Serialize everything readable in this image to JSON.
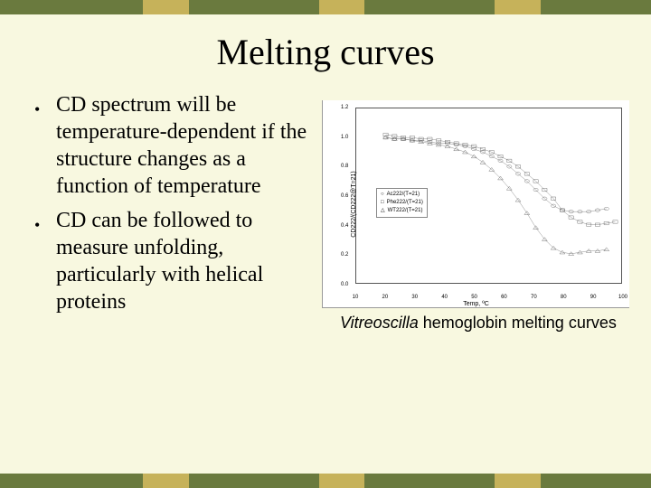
{
  "border": {
    "colors": [
      "#6a7a3e",
      "#c6b25a",
      "#6a7a3e",
      "#c6b25a",
      "#6a7a3e",
      "#c6b25a",
      "#6a7a3e"
    ],
    "widths_pct": [
      22,
      7,
      20,
      7,
      20,
      7,
      17
    ]
  },
  "title": "Melting curves",
  "bullets": [
    "CD spectrum will be temperature-dependent if the structure changes as a function of temperature",
    "CD can be followed to measure unfolding, particularly with helical proteins"
  ],
  "chart": {
    "type": "scatter-line",
    "ylabel": "CD222/(CD222@T=21)",
    "xlabel": "Temp, ºC",
    "xlim": [
      10,
      100
    ],
    "xtick_step": 10,
    "ylim": [
      0.0,
      1.2
    ],
    "yticks": [
      0.0,
      0.2,
      0.4,
      0.6,
      0.8,
      1.0,
      1.2
    ],
    "background_color": "#ffffff",
    "axis_color": "#555555",
    "tick_fontsize": 6,
    "label_fontsize": 7,
    "legend": {
      "items": [
        {
          "marker": "circle",
          "label": "Ac222/(T=21)"
        },
        {
          "marker": "square",
          "label": "Phe222/(T=21)"
        },
        {
          "marker": "triangle",
          "label": "WT222/(T=21)"
        }
      ],
      "border_color": "#888888"
    },
    "series": [
      {
        "marker": "circle",
        "color": "#444444",
        "x": [
          20,
          23,
          26,
          29,
          32,
          35,
          38,
          41,
          44,
          47,
          50,
          53,
          56,
          59,
          62,
          65,
          68,
          71,
          74,
          77,
          80,
          83,
          86,
          89,
          92,
          95
        ],
        "y": [
          1.0,
          0.99,
          0.99,
          0.98,
          0.98,
          0.97,
          0.96,
          0.96,
          0.95,
          0.94,
          0.92,
          0.9,
          0.87,
          0.84,
          0.8,
          0.75,
          0.7,
          0.64,
          0.58,
          0.53,
          0.5,
          0.49,
          0.49,
          0.49,
          0.5,
          0.51
        ]
      },
      {
        "marker": "square",
        "color": "#444444",
        "x": [
          20,
          23,
          26,
          29,
          32,
          35,
          38,
          41,
          44,
          47,
          50,
          53,
          56,
          59,
          62,
          65,
          68,
          71,
          74,
          77,
          80,
          83,
          86,
          89,
          92,
          95,
          98
        ],
        "y": [
          1.02,
          1.01,
          1.0,
          1.0,
          0.99,
          0.99,
          0.98,
          0.97,
          0.96,
          0.95,
          0.94,
          0.92,
          0.9,
          0.87,
          0.84,
          0.8,
          0.75,
          0.7,
          0.64,
          0.58,
          0.5,
          0.45,
          0.42,
          0.4,
          0.4,
          0.41,
          0.42
        ]
      },
      {
        "marker": "triangle",
        "color": "#444444",
        "x": [
          20,
          23,
          26,
          29,
          32,
          35,
          38,
          41,
          44,
          47,
          50,
          53,
          56,
          59,
          62,
          65,
          68,
          71,
          74,
          77,
          80,
          83,
          86,
          89,
          92,
          95
        ],
        "y": [
          1.0,
          0.99,
          0.99,
          0.98,
          0.97,
          0.96,
          0.95,
          0.94,
          0.92,
          0.9,
          0.87,
          0.83,
          0.78,
          0.72,
          0.65,
          0.57,
          0.48,
          0.38,
          0.3,
          0.24,
          0.21,
          0.2,
          0.21,
          0.22,
          0.22,
          0.23
        ]
      }
    ]
  },
  "caption": {
    "italic": "Vitreoscilla",
    "rest": " hemoglobin melting curves"
  }
}
